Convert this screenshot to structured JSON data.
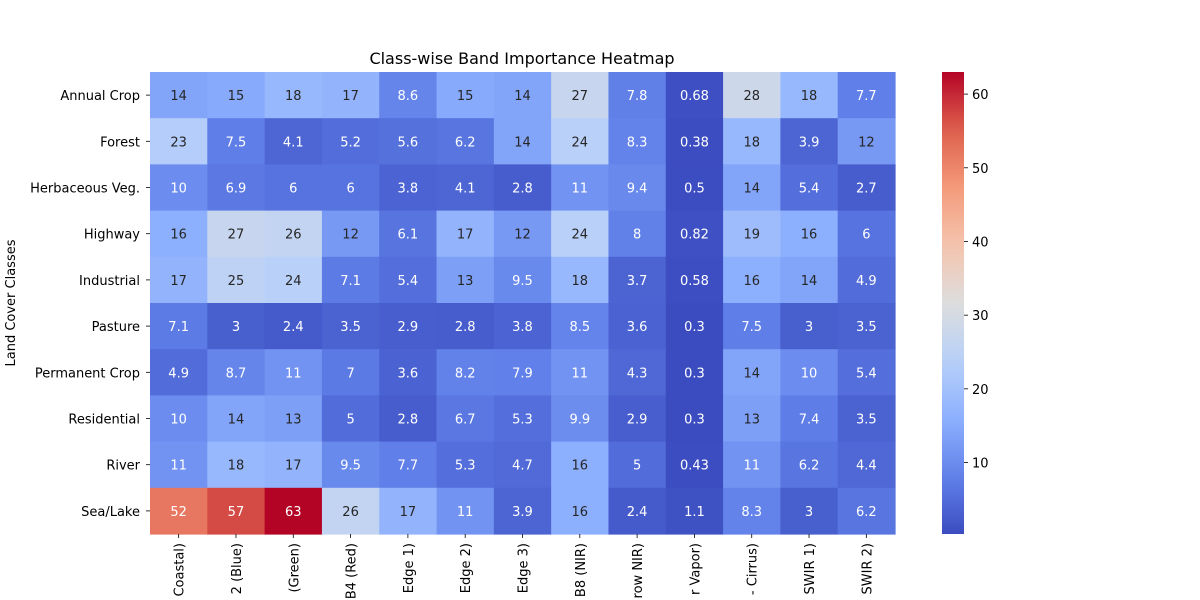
{
  "chart_data": {
    "type": "heatmap",
    "title": "Class-wise Band Importance Heatmap",
    "ylabel": "Land Cover Classes",
    "xlabel": "",
    "rows": [
      "Annual Crop",
      "Forest",
      "Herbaceous Veg.",
      "Highway",
      "Industrial",
      "Pasture",
      "Permanent Crop",
      "Residential",
      "River",
      "Sea/Lake"
    ],
    "columns": [
      "Coastal)",
      "2 (Blue)",
      "(Green)",
      "B4 (Red)",
      "Edge 1)",
      "Edge 2)",
      "Edge 3)",
      "B8 (NIR)",
      "row NIR)",
      "r Vapor)",
      "- Cirrus)",
      "SWIR 1)",
      "SWIR 2)"
    ],
    "values": [
      [
        14,
        15,
        18,
        17,
        8.6,
        15,
        14,
        27,
        7.8,
        0.68,
        28,
        18,
        7.7
      ],
      [
        23,
        7.5,
        4.1,
        5.2,
        5.6,
        6.2,
        14,
        24,
        8.3,
        0.38,
        18,
        3.9,
        12
      ],
      [
        10,
        6.9,
        6,
        6,
        3.8,
        4.1,
        2.8,
        11,
        9.4,
        0.5,
        14,
        5.4,
        2.7
      ],
      [
        16,
        27,
        26,
        12,
        6.1,
        17,
        12,
        24,
        8,
        0.82,
        19,
        16,
        6
      ],
      [
        17,
        25,
        24,
        7.1,
        5.4,
        13,
        9.5,
        18,
        3.7,
        0.58,
        16,
        14,
        4.9
      ],
      [
        7.1,
        3,
        2.4,
        3.5,
        2.9,
        2.8,
        3.8,
        8.5,
        3.6,
        0.3,
        7.5,
        3,
        3.5
      ],
      [
        4.9,
        8.7,
        11,
        7,
        3.6,
        8.2,
        7.9,
        11,
        4.3,
        0.3,
        14,
        10,
        5.4
      ],
      [
        10,
        14,
        13,
        5,
        2.8,
        6.7,
        5.3,
        9.9,
        2.9,
        0.3,
        13,
        7.4,
        3.5
      ],
      [
        11,
        18,
        17,
        9.5,
        7.7,
        5.3,
        4.7,
        16,
        5,
        0.43,
        11,
        6.2,
        4.4
      ],
      [
        52,
        57,
        63,
        26,
        17,
        11,
        3.9,
        16,
        2.4,
        1.1,
        8.3,
        3,
        6.2
      ]
    ],
    "colormap": "coolwarm",
    "vmin": 0.3,
    "vmax": 63,
    "colorbar_ticks": [
      10,
      20,
      30,
      40,
      50,
      60
    ]
  }
}
